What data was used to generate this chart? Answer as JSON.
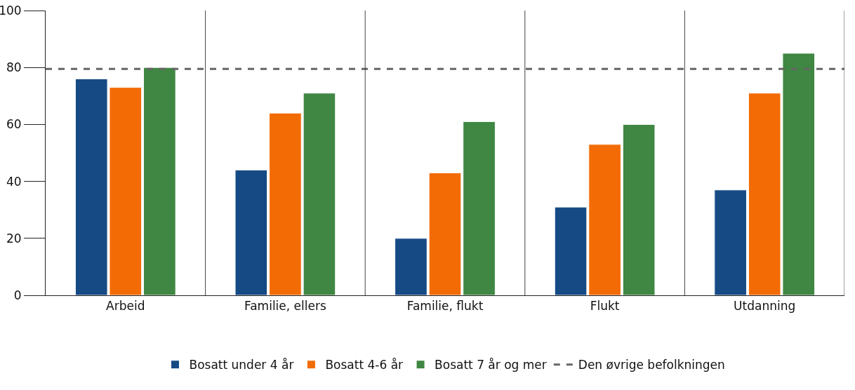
{
  "chart_data": {
    "type": "bar",
    "categories": [
      "Arbeid",
      "Familie, ellers",
      "Familie, flukt",
      "Flukt",
      "Utdanning"
    ],
    "series": [
      {
        "name": "Bosatt under 4 år",
        "color": "#154a85",
        "values": [
          76,
          44,
          20,
          31,
          37
        ]
      },
      {
        "name": "Bosatt 4-6 år",
        "color": "#f26b04",
        "values": [
          73,
          64,
          43,
          53,
          71
        ]
      },
      {
        "name": "Bosatt 7 år og mer",
        "color": "#3f8743",
        "values": [
          80,
          71,
          61,
          60,
          85
        ]
      }
    ],
    "ref_lines": [
      {
        "axis": "y",
        "value": 79.5,
        "label": "Den øvrige befolkningen",
        "color": "#666666",
        "line_style": "dashed"
      }
    ],
    "ylim": [
      0,
      100
    ],
    "yticks": [
      0,
      20,
      40,
      60,
      80,
      100
    ],
    "grid": "x",
    "legend": "bottom"
  }
}
